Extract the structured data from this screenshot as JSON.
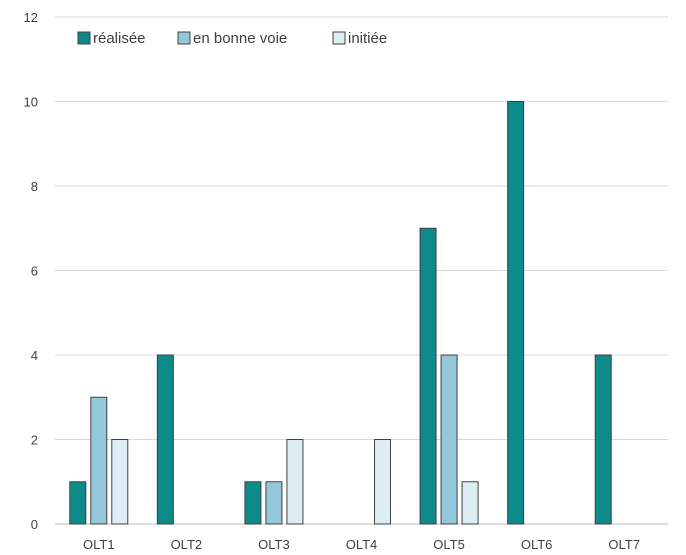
{
  "chart_data": {
    "type": "bar",
    "categories": [
      "OLT1",
      "OLT2",
      "OLT3",
      "OLT4",
      "OLT5",
      "OLT6",
      "OLT7"
    ],
    "series": [
      {
        "name": "réalisée",
        "color": "#0e8a8a",
        "values": [
          1,
          4,
          1,
          0,
          7,
          10,
          4
        ]
      },
      {
        "name": "en bonne voie",
        "color": "#94c7d9",
        "values": [
          3,
          0,
          1,
          0,
          4,
          0,
          0
        ]
      },
      {
        "name": "initiée",
        "color": "#dcedf4",
        "values": [
          2,
          0,
          2,
          2,
          1,
          0,
          0
        ]
      }
    ],
    "ylim": [
      0,
      12
    ],
    "yticks": [
      0,
      2,
      4,
      6,
      8,
      10,
      12
    ],
    "grid": true,
    "legend_position": "top-left"
  }
}
